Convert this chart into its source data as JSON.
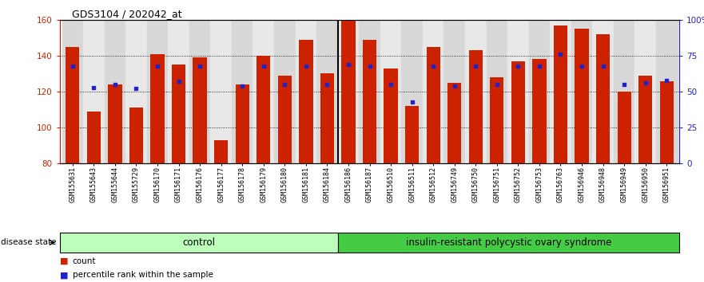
{
  "title": "GDS3104 / 202042_at",
  "samples": [
    "GSM155631",
    "GSM155643",
    "GSM155644",
    "GSM155729",
    "GSM156170",
    "GSM156171",
    "GSM156176",
    "GSM156177",
    "GSM156178",
    "GSM156179",
    "GSM156180",
    "GSM156181",
    "GSM156184",
    "GSM156186",
    "GSM156187",
    "GSM156510",
    "GSM156511",
    "GSM156512",
    "GSM156749",
    "GSM156750",
    "GSM156751",
    "GSM156752",
    "GSM156753",
    "GSM156763",
    "GSM156946",
    "GSM156948",
    "GSM156949",
    "GSM156950",
    "GSM156951"
  ],
  "counts": [
    145,
    109,
    124,
    111,
    141,
    135,
    139,
    93,
    124,
    140,
    129,
    149,
    130,
    160,
    149,
    133,
    112,
    145,
    125,
    143,
    128,
    137,
    138,
    157,
    155,
    152,
    120,
    129,
    126
  ],
  "percentiles": [
    68,
    53,
    55,
    52,
    68,
    57,
    68,
    null,
    54,
    68,
    55,
    68,
    55,
    69,
    68,
    55,
    43,
    68,
    54,
    68,
    55,
    68,
    68,
    76,
    68,
    68,
    55,
    56,
    58
  ],
  "n_control": 13,
  "ylim_left": [
    80,
    160
  ],
  "yticks_left": [
    80,
    100,
    120,
    140,
    160
  ],
  "yticks_right": [
    0,
    25,
    50,
    75,
    100
  ],
  "bar_color": "#CC2200",
  "dot_color": "#2222CC",
  "control_bg": "#BBFFBB",
  "disease_bg": "#44CC44",
  "tick_bg_even": "#D8D8D8",
  "tick_bg_odd": "#E8E8E8",
  "control_label": "control",
  "disease_label": "insulin-resistant polycystic ovary syndrome",
  "legend_count": "count",
  "legend_percentile": "percentile rank within the sample",
  "disease_state_label": "disease state"
}
